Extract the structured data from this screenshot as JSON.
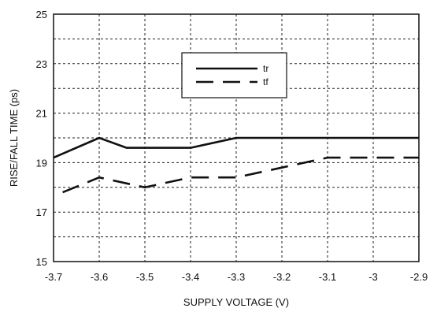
{
  "chart_data": {
    "type": "line",
    "xlabel": "SUPPLY VOLTAGE (V)",
    "ylabel": "RISE/FALL TIME (ps)",
    "xlim": [
      -3.7,
      -2.9
    ],
    "ylim": [
      15,
      25
    ],
    "x_ticks": [
      "-3.7",
      "-3.6",
      "-3.5",
      "-3.4",
      "-3.3",
      "-3.2",
      "-3.1",
      "-3",
      "-2.9"
    ],
    "y_ticks": [
      "15",
      "17",
      "19",
      "21",
      "23",
      "25"
    ],
    "grid": true,
    "legend_position": "top-center",
    "series": [
      {
        "name": "tr",
        "style": "solid",
        "x": [
          -3.7,
          -3.6,
          -3.54,
          -3.4,
          -3.3,
          -3.2,
          -3.1,
          -3.0,
          -2.9
        ],
        "y": [
          19.2,
          20.0,
          19.6,
          19.6,
          20.0,
          20.0,
          20.0,
          20.0,
          20.0
        ]
      },
      {
        "name": "tf",
        "style": "dashed",
        "x": [
          -3.68,
          -3.6,
          -3.5,
          -3.4,
          -3.3,
          -3.2,
          -3.1,
          -3.0,
          -2.9
        ],
        "y": [
          17.8,
          18.4,
          18.0,
          18.4,
          18.4,
          18.8,
          19.2,
          19.2,
          19.2
        ]
      }
    ]
  }
}
